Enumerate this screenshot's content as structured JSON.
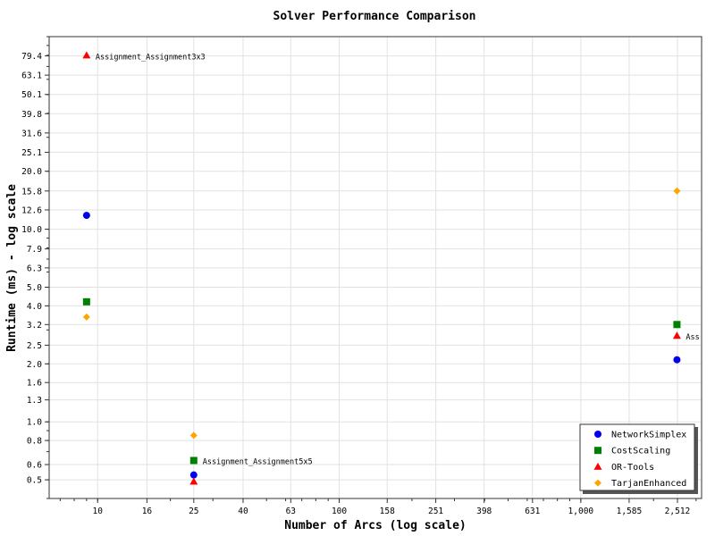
{
  "chart_data": {
    "type": "scatter",
    "title": "Solver Performance Comparison",
    "xlabel": "Number of Arcs (log scale)",
    "ylabel": "Runtime (ms) - log scale",
    "x_scale": "log",
    "y_scale": "log",
    "xlim": [
      6.3,
      3162
    ],
    "ylim": [
      0.4,
      100
    ],
    "x_ticks": [
      10,
      16,
      25,
      40,
      63,
      100,
      158,
      251,
      398,
      631,
      1000,
      1585,
      2512
    ],
    "x_tick_labels": [
      "10",
      "16",
      "25",
      "40",
      "63",
      "100",
      "158",
      "251",
      "398",
      "631",
      "1,000",
      "1,585",
      "2,512"
    ],
    "y_ticks": [
      0.5,
      0.6,
      0.8,
      1.0,
      1.3,
      1.6,
      2.0,
      2.5,
      3.2,
      4.0,
      5.0,
      6.3,
      7.9,
      10.0,
      12.6,
      15.8,
      20.0,
      25.1,
      31.6,
      39.8,
      50.1,
      63.1,
      79.4
    ],
    "y_tick_labels": [
      "0.5",
      "0.6",
      "0.8",
      "1.0",
      "1.3",
      "1.6",
      "2.0",
      "2.5",
      "3.2",
      "4.0",
      "5.0",
      "6.3",
      "7.9",
      "10.0",
      "12.6",
      "15.8",
      "20.0",
      "25.1",
      "31.6",
      "39.8",
      "50.1",
      "63.1",
      "79.4"
    ],
    "grid": true,
    "legend_position": "bottom-right",
    "series": [
      {
        "name": "NetworkSimplex",
        "marker": "circle",
        "color": "#0000ee",
        "points": [
          {
            "x": 9,
            "y": 11.8
          },
          {
            "x": 25,
            "y": 0.53
          },
          {
            "x": 2500,
            "y": 2.1
          }
        ]
      },
      {
        "name": "CostScaling",
        "marker": "square",
        "color": "#008000",
        "points": [
          {
            "x": 9,
            "y": 4.2
          },
          {
            "x": 25,
            "y": 0.63
          },
          {
            "x": 2500,
            "y": 3.2
          }
        ]
      },
      {
        "name": "OR-Tools",
        "marker": "triangle",
        "color": "#ff0000",
        "points": [
          {
            "x": 9,
            "y": 80
          },
          {
            "x": 25,
            "y": 0.49
          },
          {
            "x": 2500,
            "y": 2.8
          }
        ]
      },
      {
        "name": "TarjanEnhanced",
        "marker": "diamond",
        "color": "#ffa500",
        "points": [
          {
            "x": 9,
            "y": 3.5
          },
          {
            "x": 25,
            "y": 0.85
          },
          {
            "x": 2500,
            "y": 15.8
          }
        ]
      }
    ],
    "annotations": [
      {
        "text": "Assignment_Assignment3x3",
        "x": 9,
        "y": 79.4
      },
      {
        "text": "Assignment_Assignment5x5",
        "x": 25,
        "y": 0.63
      },
      {
        "text": "Ass",
        "x": 2500,
        "y": 2.8
      }
    ]
  }
}
